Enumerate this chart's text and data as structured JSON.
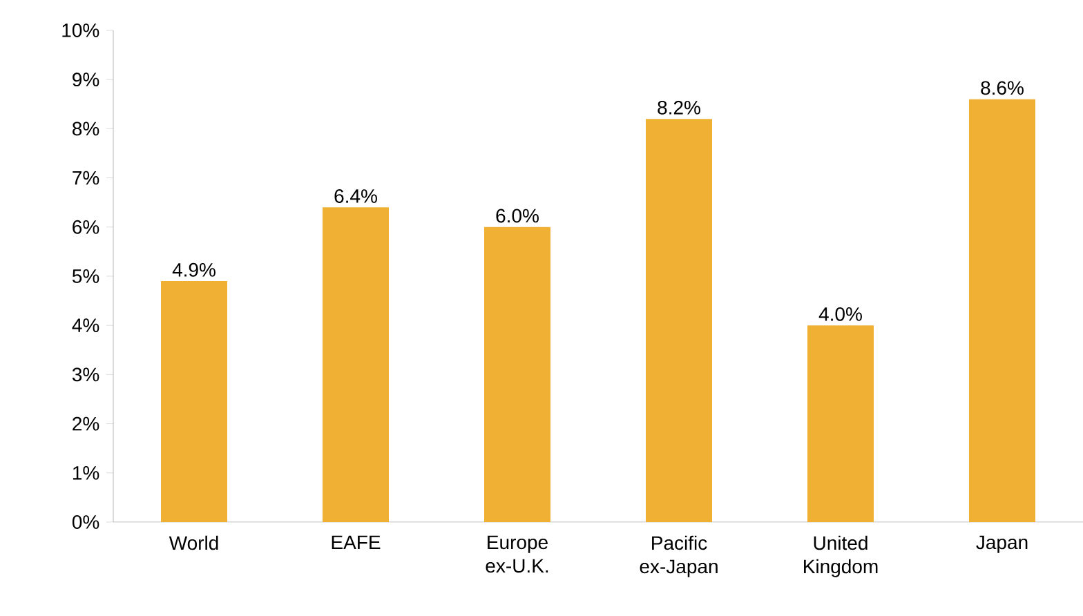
{
  "chart_data": {
    "type": "bar",
    "categories": [
      "World",
      "EAFE",
      "Europe ex-U.K.",
      "Pacific ex-Japan",
      "United Kingdom",
      "Japan"
    ],
    "values": [
      4.9,
      6.4,
      6.0,
      8.2,
      4.0,
      8.6
    ],
    "value_labels": [
      "4.9%",
      "6.4%",
      "6.0%",
      "8.2%",
      "4.0%",
      "8.6%"
    ],
    "color": "#efb034",
    "ylim": [
      0,
      10
    ],
    "yticks": [
      {
        "value": 0,
        "label": "0%"
      },
      {
        "value": 1,
        "label": "1%"
      },
      {
        "value": 2,
        "label": "2%"
      },
      {
        "value": 3,
        "label": "3%"
      },
      {
        "value": 4,
        "label": "4%"
      },
      {
        "value": 5,
        "label": "5%"
      },
      {
        "value": 6,
        "label": "6%"
      },
      {
        "value": 7,
        "label": "7%"
      },
      {
        "value": 8,
        "label": "8%"
      },
      {
        "value": 9,
        "label": "9%"
      },
      {
        "value": 10,
        "label": "10%"
      }
    ]
  }
}
